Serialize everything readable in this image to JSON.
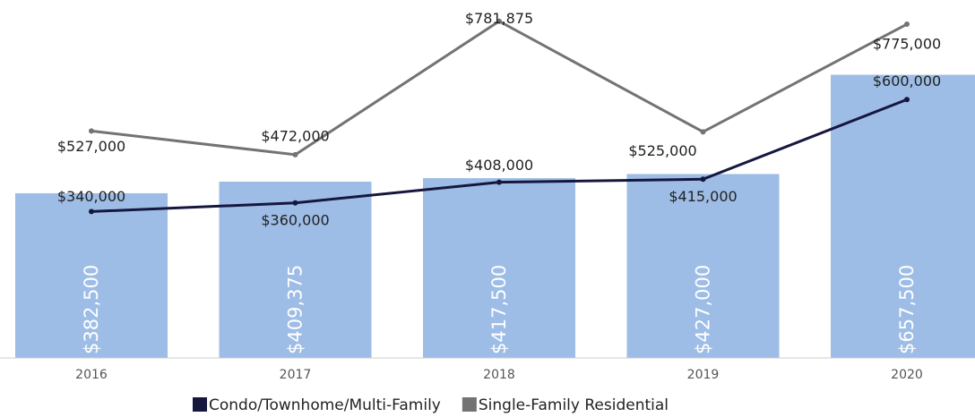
{
  "chart_data": {
    "type": "combo",
    "categories": [
      "2016",
      "2017",
      "2018",
      "2019",
      "2020"
    ],
    "ylim": [
      0,
      800000
    ],
    "bars": {
      "color": "#9dbde6",
      "values": [
        382500,
        409375,
        417500,
        427000,
        657500
      ],
      "value_labels": [
        "$382,500",
        "$409,375",
        "$417,500",
        "$427,000",
        "$657,500"
      ]
    },
    "series": [
      {
        "name": "Condo/Townhome/Multi-Family",
        "color": "#16173f",
        "values": [
          340000,
          360000,
          408000,
          415000,
          600000
        ],
        "value_labels": [
          "$340,000",
          "$360,000",
          "$408,000",
          "$415,000",
          "$600,000"
        ]
      },
      {
        "name": "Single-Family Residential",
        "color": "#737373",
        "values": [
          527000,
          472000,
          781875,
          525000,
          775000
        ],
        "value_labels": [
          "$527,000",
          "$472,000",
          "$781,875",
          "$525,000",
          "$775,000"
        ]
      }
    ],
    "legend": "bottom"
  }
}
